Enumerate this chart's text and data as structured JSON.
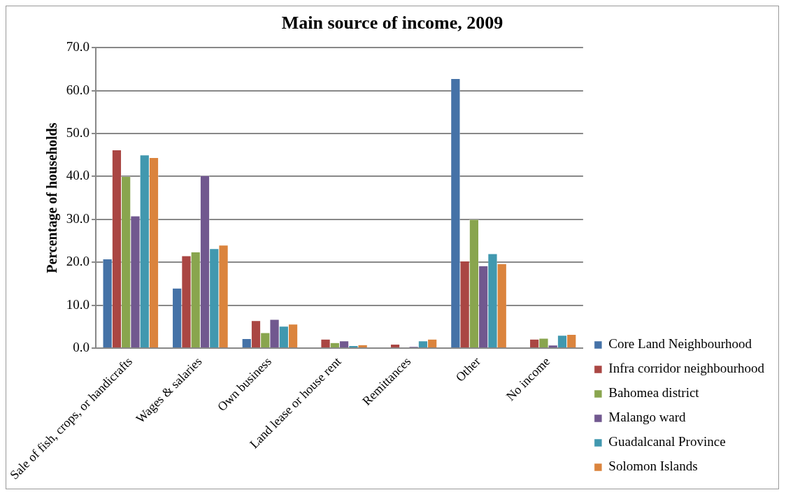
{
  "chart_data": {
    "type": "bar",
    "title": "Main source of income, 2009",
    "ylabel": "Percentage of households",
    "categories": [
      "Sale of fish, crops, or handicrafts",
      "Wages & salaries",
      "Own business",
      "Land lease or house rent",
      "Remittances",
      "Other",
      "No income"
    ],
    "series": [
      {
        "name": "Core Land Neighbourhood",
        "color": "#4572a7",
        "values": [
          20.8,
          14.0,
          2.2,
          0,
          0,
          62.8,
          0
        ]
      },
      {
        "name": "Infra corridor neighbourhood",
        "color": "#aa4643",
        "values": [
          46.2,
          21.5,
          6.4,
          2.1,
          0.9,
          20.3,
          2.1
        ]
      },
      {
        "name": "Bahomea district",
        "color": "#89a54e",
        "values": [
          40.0,
          22.4,
          3.6,
          1.3,
          0,
          30.0,
          2.3
        ]
      },
      {
        "name": "Malango ward",
        "color": "#71588f",
        "values": [
          30.8,
          40.2,
          6.7,
          1.7,
          0.4,
          19.2,
          0.7
        ]
      },
      {
        "name": "Guadalcanal Province",
        "color": "#4198af",
        "values": [
          45.0,
          23.2,
          5.1,
          0.6,
          1.7,
          22.0,
          3.0
        ]
      },
      {
        "name": "Solomon Islands",
        "color": "#db843d",
        "values": [
          44.4,
          24.0,
          5.6,
          0.8,
          2.1,
          19.7,
          3.2
        ]
      }
    ],
    "ylim": [
      0,
      70
    ],
    "yticks": [
      {
        "value": 0,
        "label": "0.0"
      },
      {
        "value": 10,
        "label": "10.0"
      },
      {
        "value": 20,
        "label": "20.0"
      },
      {
        "value": 30,
        "label": "30.0"
      },
      {
        "value": 40,
        "label": "40.0"
      },
      {
        "value": 50,
        "label": "50.0"
      },
      {
        "value": 60,
        "label": "60.0"
      },
      {
        "value": 70,
        "label": "70.0"
      }
    ],
    "grid": "y",
    "legend": "bottom right"
  }
}
